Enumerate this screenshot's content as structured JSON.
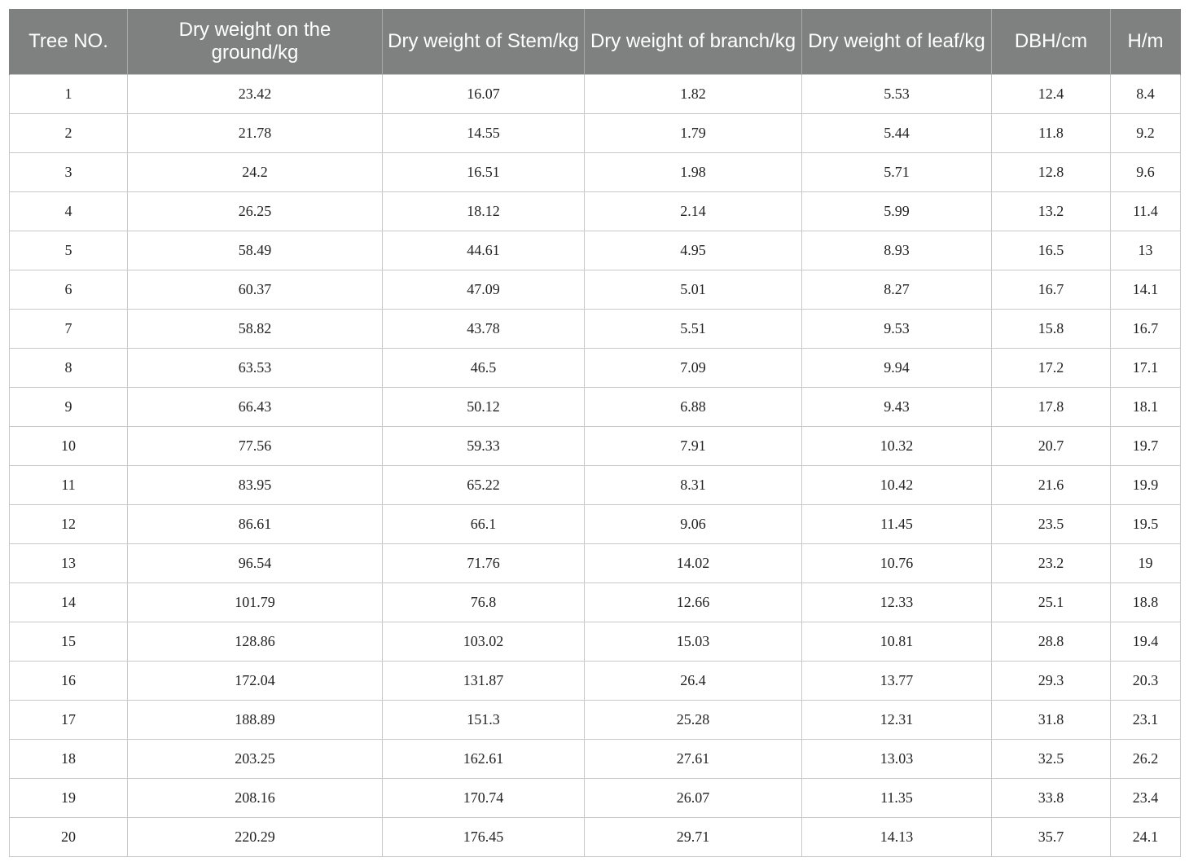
{
  "table": {
    "headers": [
      "Tree NO.",
      "Dry weight on the ground/kg",
      "Dry weight of Stem/kg",
      "Dry weight of branch/kg",
      "Dry weight of leaf/kg",
      "DBH/cm",
      "H/m"
    ],
    "rows": [
      [
        "1",
        "23.42",
        "16.07",
        "1.82",
        "5.53",
        "12.4",
        "8.4"
      ],
      [
        "2",
        "21.78",
        "14.55",
        "1.79",
        "5.44",
        "11.8",
        "9.2"
      ],
      [
        "3",
        "24.2",
        "16.51",
        "1.98",
        "5.71",
        "12.8",
        "9.6"
      ],
      [
        "4",
        "26.25",
        "18.12",
        "2.14",
        "5.99",
        "13.2",
        "11.4"
      ],
      [
        "5",
        "58.49",
        "44.61",
        "4.95",
        "8.93",
        "16.5",
        "13"
      ],
      [
        "6",
        "60.37",
        "47.09",
        "5.01",
        "8.27",
        "16.7",
        "14.1"
      ],
      [
        "7",
        "58.82",
        "43.78",
        "5.51",
        "9.53",
        "15.8",
        "16.7"
      ],
      [
        "8",
        "63.53",
        "46.5",
        "7.09",
        "9.94",
        "17.2",
        "17.1"
      ],
      [
        "9",
        "66.43",
        "50.12",
        "6.88",
        "9.43",
        "17.8",
        "18.1"
      ],
      [
        "10",
        "77.56",
        "59.33",
        "7.91",
        "10.32",
        "20.7",
        "19.7"
      ],
      [
        "11",
        "83.95",
        "65.22",
        "8.31",
        "10.42",
        "21.6",
        "19.9"
      ],
      [
        "12",
        "86.61",
        "66.1",
        "9.06",
        "11.45",
        "23.5",
        "19.5"
      ],
      [
        "13",
        "96.54",
        "71.76",
        "14.02",
        "10.76",
        "23.2",
        "19"
      ],
      [
        "14",
        "101.79",
        "76.8",
        "12.66",
        "12.33",
        "25.1",
        "18.8"
      ],
      [
        "15",
        "128.86",
        "103.02",
        "15.03",
        "10.81",
        "28.8",
        "19.4"
      ],
      [
        "16",
        "172.04",
        "131.87",
        "26.4",
        "13.77",
        "29.3",
        "20.3"
      ],
      [
        "17",
        "188.89",
        "151.3",
        "25.28",
        "12.31",
        "31.8",
        "23.1"
      ],
      [
        "18",
        "203.25",
        "162.61",
        "27.61",
        "13.03",
        "32.5",
        "26.2"
      ],
      [
        "19",
        "208.16",
        "170.74",
        "26.07",
        "11.35",
        "33.8",
        "23.4"
      ],
      [
        "20",
        "220.29",
        "176.45",
        "29.71",
        "14.13",
        "35.7",
        "24.1"
      ]
    ]
  },
  "colors": {
    "header_background": "#7f8080",
    "header_text": "#ffffff",
    "grid_line": "#c8c8c8"
  }
}
